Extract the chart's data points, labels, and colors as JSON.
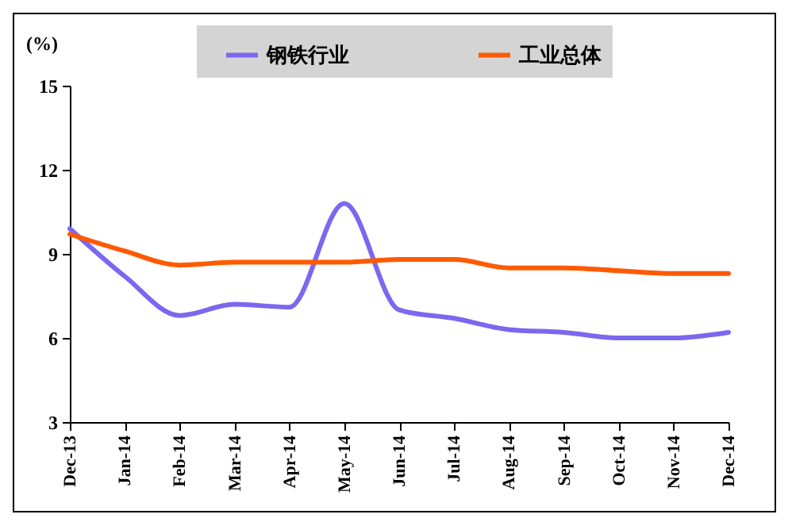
{
  "chart_data": {
    "type": "line",
    "ylabel": "(%)",
    "categories": [
      "Dec-13",
      "Jan-14",
      "Feb-14",
      "Mar-14",
      "Apr-14",
      "May-14",
      "Jun-14",
      "Jul-14",
      "Aug-14",
      "Sep-14",
      "Oct-14",
      "Nov-14",
      "Dec-14"
    ],
    "series": [
      {
        "name": "钢铁行业",
        "color": "#7b68ee",
        "values": [
          9.9,
          8.2,
          6.8,
          7.2,
          7.1,
          10.8,
          7.0,
          6.7,
          6.3,
          6.2,
          6.0,
          6.0,
          6.2
        ]
      },
      {
        "name": "工业总体",
        "color": "#ff5a00",
        "values": [
          9.7,
          9.1,
          8.6,
          8.7,
          8.7,
          8.7,
          8.8,
          8.8,
          8.5,
          8.5,
          8.4,
          8.3,
          8.3
        ]
      }
    ],
    "ylim": [
      3,
      15
    ],
    "yticks": [
      3,
      6,
      9,
      12,
      15
    ],
    "legend": "top"
  }
}
